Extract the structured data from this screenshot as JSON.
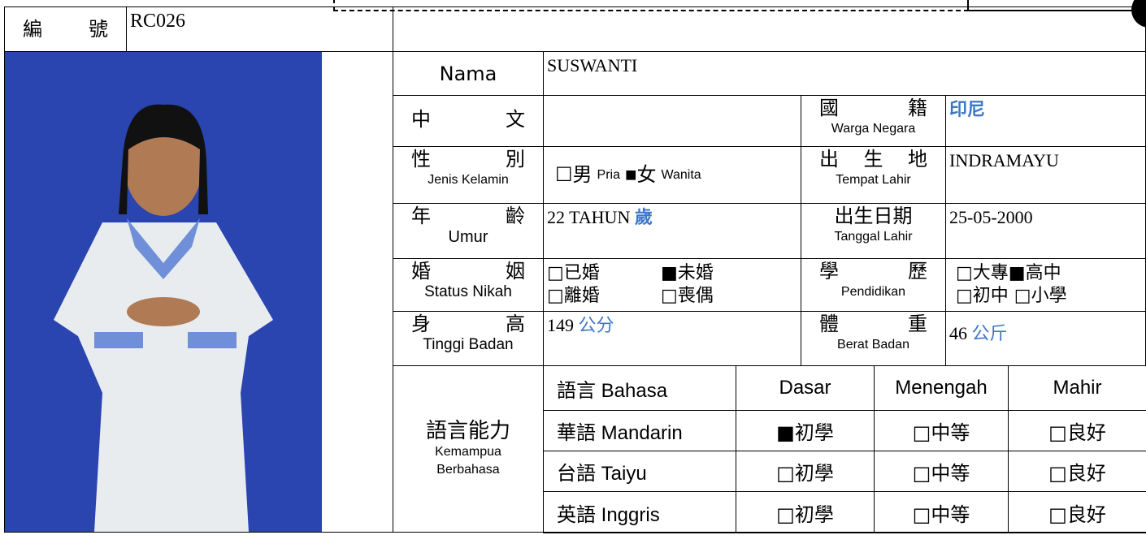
{
  "header": {
    "id_label": "編 號",
    "id": "RC026"
  },
  "name": {
    "label": "Nama",
    "value": "SUSWANTI"
  },
  "chinese": {
    "label": "中 文"
  },
  "nationality": {
    "label_zh": "國 籍",
    "label_id": "Warga Negara",
    "value": "印尼"
  },
  "gender": {
    "label_zh": "性 別",
    "label_id": "Jenis Kelamin",
    "options": [
      "☐男",
      "Pria",
      "■女",
      "Wanita"
    ]
  },
  "birthplace": {
    "label_zh": "出 生 地",
    "label_id": "Tempat Lahir",
    "value": "INDRAMAYU"
  },
  "age": {
    "label_zh": "年 齡",
    "label_id": "Umur",
    "value": "22 TAHUN",
    "unit": "歲"
  },
  "birthdate": {
    "label_zh": "出生日期",
    "label_id": "Tanggal Lahir",
    "value": "25-05-2000"
  },
  "marital": {
    "label_zh": "婚 姻",
    "label_id": "Status Nikah",
    "options": [
      "□已婚",
      "■未婚",
      "□離婚",
      "□喪偶"
    ]
  },
  "education": {
    "label_zh": "學 歷",
    "label_id": "Pendidikan",
    "options": [
      "□大專■高中",
      "□初中 □小學"
    ]
  },
  "height": {
    "label_zh": "身 高",
    "label_id": "Tinggi Badan",
    "value": "149",
    "unit": "公分"
  },
  "weight": {
    "label_zh": "體 重",
    "label_id": "Berat Badan",
    "value": "46",
    "unit": "公斤"
  },
  "language": {
    "label_zh": "語言能力",
    "label_id": "Kemampua Berbahasa",
    "header": [
      "語言 Bahasa",
      "Dasar",
      "Menengah",
      "Mahir"
    ],
    "rows": [
      [
        "華語 Mandarin",
        "■初學",
        "□中等",
        "□良好"
      ],
      [
        "台語 Taiyu",
        "□初學",
        "□中等",
        "□良好"
      ],
      [
        "英語 Inggris",
        "□初學",
        "□中等",
        "□良好"
      ]
    ]
  }
}
